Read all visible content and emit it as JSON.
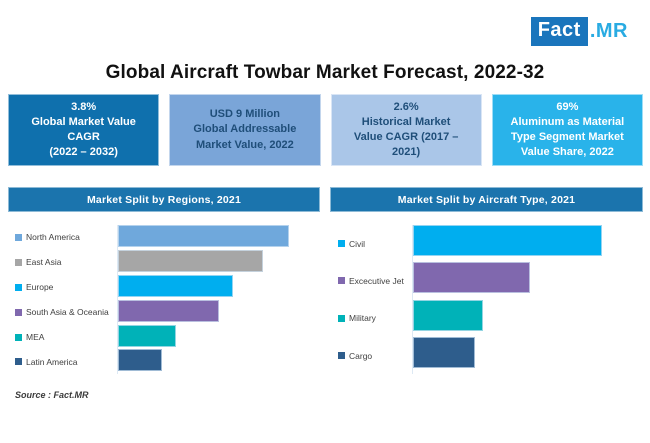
{
  "brand": {
    "logo_fact": "Fact",
    "logo_mr": ".MR",
    "logo_fact_bg": "#1a75bc",
    "logo_fact_color": "#ffffff",
    "logo_mr_color": "#29abe2"
  },
  "title": "Global Aircraft Towbar Market Forecast, 2022-32",
  "stat_boxes": [
    {
      "text": "3.8%\nGlobal Market Value\nCAGR\n(2022 – 2032)",
      "bg": "#0f70ad",
      "fg": "#ffffff"
    },
    {
      "text": "USD 9 Million\nGlobal Addressable\nMarket Value, 2022",
      "bg": "#7aa5d8",
      "fg": "#1f4e79"
    },
    {
      "text": "2.6%\nHistorical Market\nValue CAGR (2017 –\n2021)",
      "bg": "#aac6e8",
      "fg": "#1f4e79"
    },
    {
      "text": "69%\nAluminum as Material\nType Segment Market\nValue Share, 2022",
      "bg": "#29b3ea",
      "fg": "#ffffff"
    }
  ],
  "theme": {
    "chart_header_bg": "#1b74ad",
    "legend_text_color": "#3f3f3f"
  },
  "chart_data": [
    {
      "type": "bar",
      "orientation": "horizontal",
      "title": "Market Split by Regions, 2021",
      "categories": [
        "North America",
        "East Asia",
        "Europe",
        "South Asia & Oceania",
        "MEA",
        "Latin America"
      ],
      "values_relative_max100": [
        100,
        85,
        67,
        59,
        34,
        26
      ],
      "values_est_share_pct": [
        27,
        23,
        18,
        16,
        9,
        7
      ],
      "colors": [
        "#6fa8dc",
        "#a6a6a6",
        "#00aeef",
        "#8068ae",
        "#00b2b8",
        "#2e5d8c"
      ],
      "xlabel": "",
      "ylabel": "",
      "axis_tick_labels_shown": false,
      "gridlines": false,
      "legend_position": "left"
    },
    {
      "type": "bar",
      "orientation": "horizontal",
      "title": "Market Split by Aircraft Type, 2021",
      "categories": [
        "Civil",
        "Excecutive Jet",
        "Military",
        "Cargo"
      ],
      "values_relative_max100": [
        100,
        62,
        37,
        33
      ],
      "values_est_share_pct": [
        43,
        27,
        16,
        14
      ],
      "colors": [
        "#00aeef",
        "#8068ae",
        "#00b2b8",
        "#2e5d8c"
      ],
      "xlabel": "",
      "ylabel": "",
      "axis_tick_labels_shown": false,
      "gridlines": false,
      "legend_position": "left"
    }
  ],
  "footer": {
    "source": "Source : Fact.MR"
  }
}
